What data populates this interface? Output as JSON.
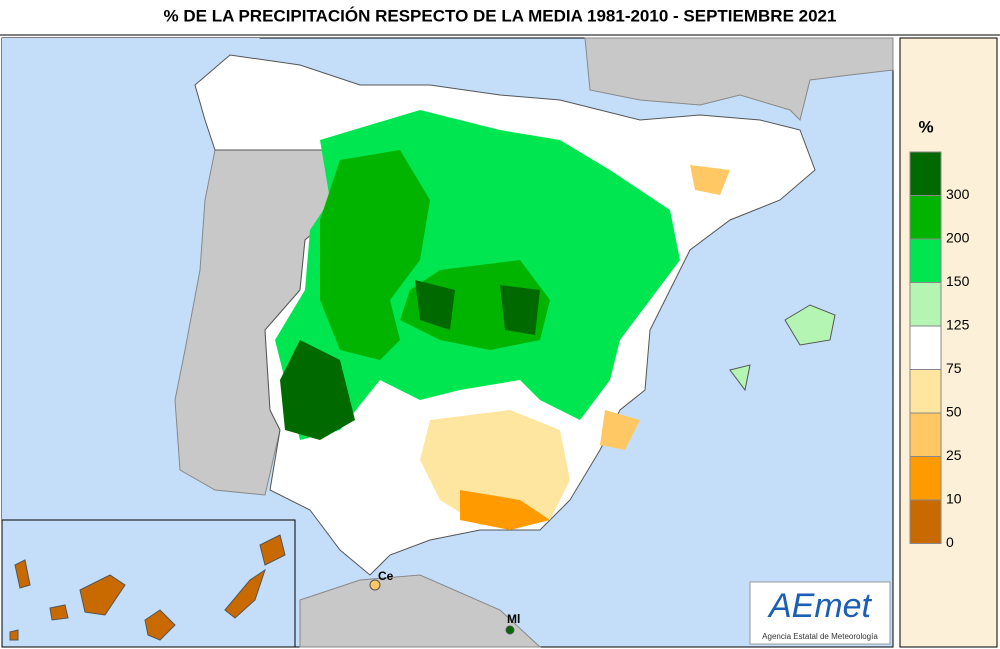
{
  "title": "% DE LA PRECIPITACIÓN RESPECTO DE LA MEDIA 1981-2010 - SEPTIEMBRE 2021",
  "legend": {
    "unit": "%",
    "labels": [
      300,
      200,
      150,
      125,
      75,
      50,
      25,
      10,
      0
    ],
    "colors": [
      "#006a00",
      "#00b400",
      "#00e650",
      "#b4f5b4",
      "#ffffff",
      "#ffe6a0",
      "#ffc864",
      "#ff9a00",
      "#c86a00"
    ]
  },
  "places": [
    "Ce",
    "Ml"
  ],
  "logo": {
    "name": "AEmet",
    "subtitle": "Agencia Estatal de Meteorología"
  }
}
